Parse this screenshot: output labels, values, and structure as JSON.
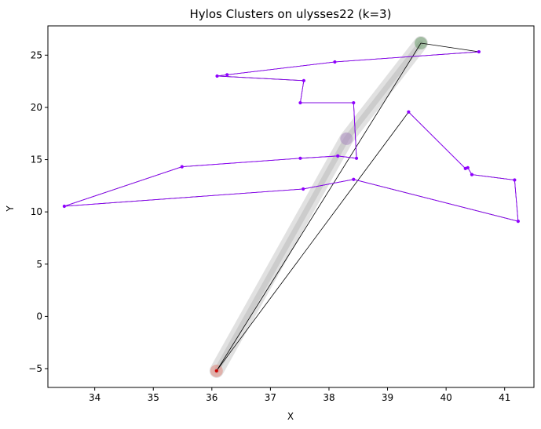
{
  "chart_data": {
    "type": "scatter",
    "title": "Hylos Clusters on ulysses22 (k=3)",
    "xlabel": "X",
    "ylabel": "Y",
    "xlim": [
      33.2,
      41.5
    ],
    "ylim": [
      -6.8,
      27.8
    ],
    "xticks": [
      34,
      35,
      36,
      37,
      38,
      39,
      40,
      41
    ],
    "yticks": [
      -5,
      0,
      5,
      10,
      15,
      20,
      25
    ],
    "grid": false,
    "legend": "none",
    "colors": {
      "tour": "#8f00ff",
      "black_route": "#000000",
      "band": "#c8c8c8",
      "cluster_green": "#6f9e6f",
      "cluster_purple": "#a98bc0",
      "cluster_red": "#e08a80",
      "depot": "#cc0000"
    },
    "clusters": [
      {
        "x": 39.57,
        "y": 26.15,
        "color_key": "cluster_green"
      },
      {
        "x": 38.3,
        "y": 17.0,
        "color_key": "cluster_purple"
      },
      {
        "x": 36.08,
        "y": -5.21,
        "color_key": "cluster_red"
      }
    ],
    "band": [
      {
        "x": 39.57,
        "y": 26.15
      },
      {
        "x": 38.3,
        "y": 17.0
      },
      {
        "x": 36.08,
        "y": -5.21
      }
    ],
    "black_route": [
      {
        "x": 36.08,
        "y": -5.21
      },
      {
        "x": 39.57,
        "y": 26.15
      },
      {
        "x": 40.56,
        "y": 25.32
      },
      {
        "x": 38.1,
        "y": 24.35
      },
      {
        "x": 36.26,
        "y": 23.12
      },
      {
        "x": 36.09,
        "y": 23.0
      },
      {
        "x": 37.57,
        "y": 22.56
      },
      {
        "x": 37.51,
        "y": 20.44
      },
      {
        "x": 38.42,
        "y": 20.44
      },
      {
        "x": 38.47,
        "y": 15.13
      },
      {
        "x": 38.15,
        "y": 15.35
      },
      {
        "x": 37.51,
        "y": 15.13
      },
      {
        "x": 35.49,
        "y": 14.32
      },
      {
        "x": 33.48,
        "y": 10.54
      },
      {
        "x": 37.56,
        "y": 12.19
      },
      {
        "x": 38.42,
        "y": 13.11
      },
      {
        "x": 41.23,
        "y": 9.1
      },
      {
        "x": 41.17,
        "y": 13.05
      },
      {
        "x": 40.44,
        "y": 13.57
      },
      {
        "x": 40.37,
        "y": 14.23
      },
      {
        "x": 40.33,
        "y": 14.15
      },
      {
        "x": 39.36,
        "y": 19.56
      },
      {
        "x": 36.08,
        "y": -5.21
      }
    ],
    "tour": [
      {
        "x": 40.56,
        "y": 25.32
      },
      {
        "x": 38.1,
        "y": 24.35
      },
      {
        "x": 36.26,
        "y": 23.12
      },
      {
        "x": 36.09,
        "y": 23.0
      },
      {
        "x": 37.57,
        "y": 22.56
      },
      {
        "x": 37.51,
        "y": 20.44
      },
      {
        "x": 38.42,
        "y": 20.44
      },
      {
        "x": 38.47,
        "y": 15.13
      },
      {
        "x": 38.15,
        "y": 15.35
      },
      {
        "x": 37.51,
        "y": 15.13
      },
      {
        "x": 35.49,
        "y": 14.32
      },
      {
        "x": 33.48,
        "y": 10.54
      },
      {
        "x": 37.56,
        "y": 12.19
      },
      {
        "x": 38.42,
        "y": 13.11
      },
      {
        "x": 41.23,
        "y": 9.1
      },
      {
        "x": 41.17,
        "y": 13.05
      },
      {
        "x": 40.44,
        "y": 13.57
      },
      {
        "x": 40.37,
        "y": 14.23
      },
      {
        "x": 40.33,
        "y": 14.15
      },
      {
        "x": 39.36,
        "y": 19.56
      }
    ],
    "depot": {
      "x": 36.08,
      "y": -5.21
    }
  }
}
